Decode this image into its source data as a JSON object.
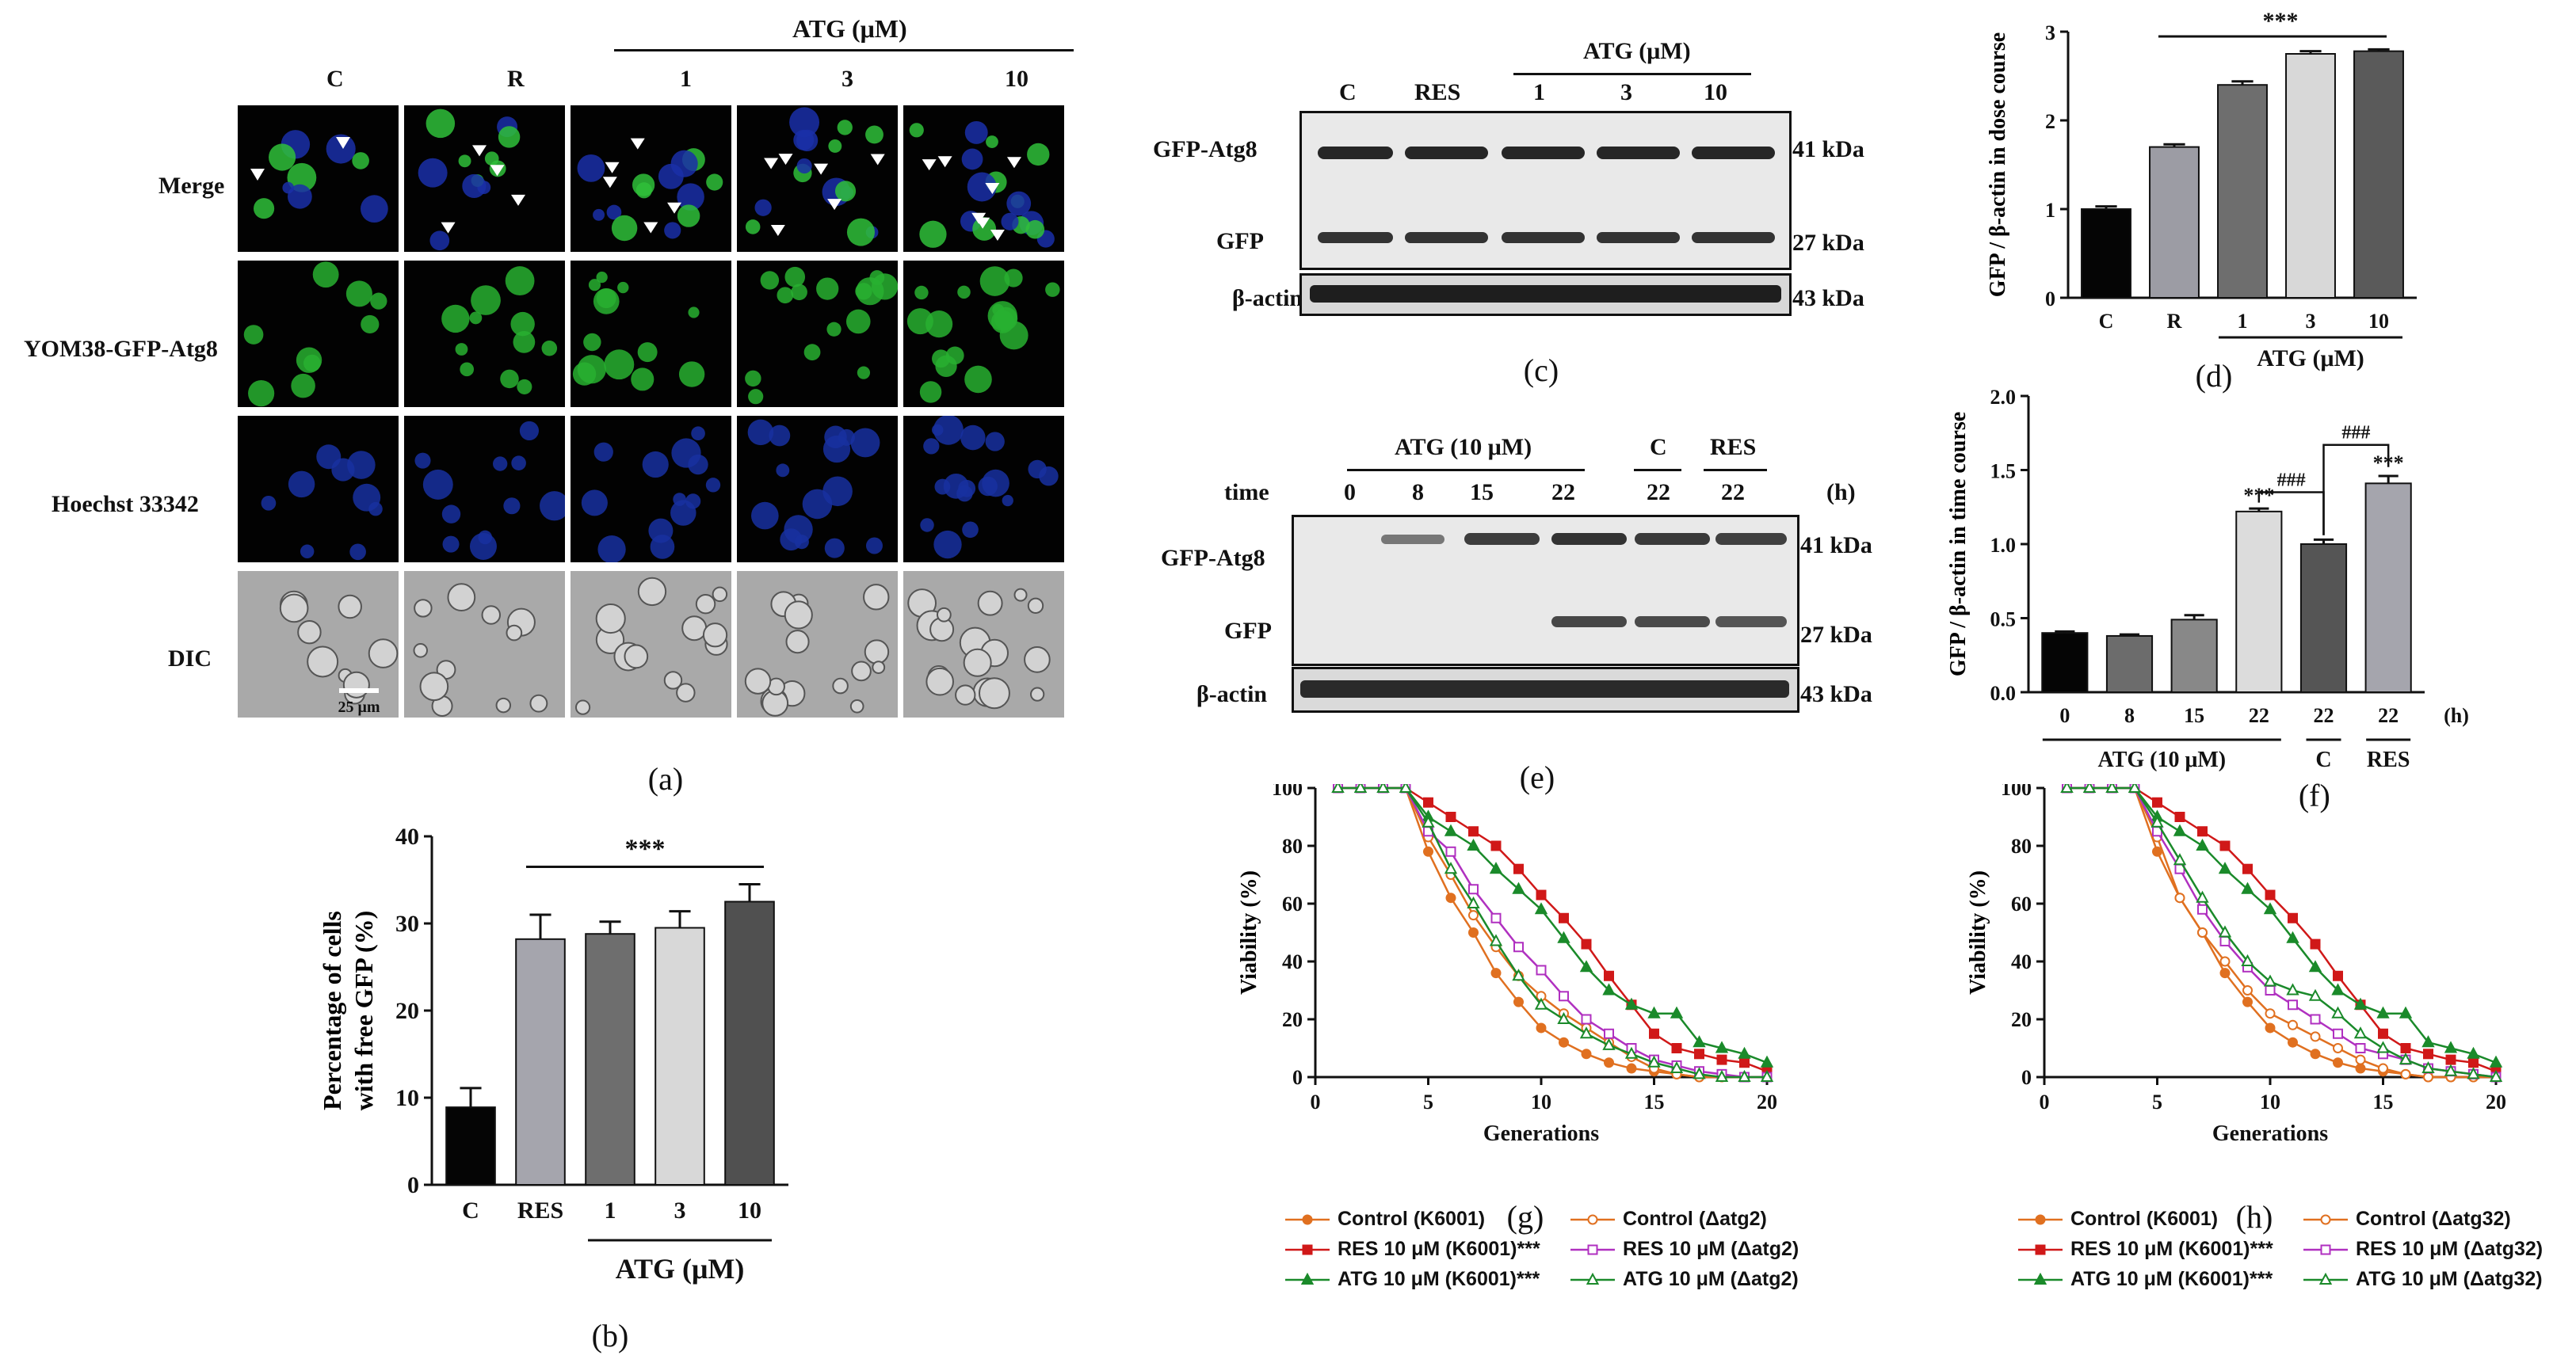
{
  "panel_a": {
    "caption": "(a)",
    "group_header": "ATG (μM)",
    "columns": [
      "C",
      "R",
      "1",
      "3",
      "10"
    ],
    "rows": [
      "Merge",
      "YOM38-GFP-Atg8",
      "Hoechst 33342",
      "DIC"
    ],
    "scale_bar": "25 μm"
  },
  "panel_c": {
    "caption": "(c)",
    "group_header": "ATG (μM)",
    "lanes": [
      "C",
      "RES",
      "1",
      "3",
      "10"
    ],
    "rows": [
      "GFP-Atg8",
      "GFP",
      "β-actin"
    ],
    "sizes": [
      "41 kDa",
      "27 kDa",
      "43 kDa"
    ]
  },
  "panel_e": {
    "caption": "(e)",
    "group_header_atg": "ATG (10 μM)",
    "group_header_c": "C",
    "group_header_res": "RES",
    "time_label": "time",
    "unit": "(h)",
    "lanes": [
      "0",
      "8",
      "15",
      "22",
      "22",
      "22"
    ],
    "rows": [
      "GFP-Atg8",
      "GFP",
      "β-actin"
    ],
    "sizes": [
      "41 kDa",
      "27 kDa",
      "43 kDa"
    ]
  },
  "chart_data": [
    {
      "id": "b",
      "type": "bar",
      "caption": "(b)",
      "categories": [
        "C",
        "RES",
        "1",
        "3",
        "10"
      ],
      "values": [
        8.9,
        28.2,
        28.8,
        29.5,
        32.5
      ],
      "errors": [
        2.2,
        2.8,
        1.4,
        1.9,
        2.0
      ],
      "colors": [
        "#050505",
        "#a5a5ad",
        "#6e6e6e",
        "#d8d8d8",
        "#505050"
      ],
      "ylabel": "Percentage of cells with free GFP (%)",
      "ylabel_lines": [
        "Percentage of cells",
        "with free GFP (%)"
      ],
      "ylim": [
        0,
        40
      ],
      "yticks": [
        "0",
        "10",
        "20",
        "30",
        "40"
      ],
      "significance": "***",
      "group_label": "ATG (μM)"
    },
    {
      "id": "d",
      "type": "bar",
      "caption": "(d)",
      "categories": [
        "C",
        "R",
        "1",
        "3",
        "10"
      ],
      "values": [
        1.0,
        1.7,
        2.4,
        2.75,
        2.78
      ],
      "errors": [
        0.03,
        0.03,
        0.04,
        0.03,
        0.02
      ],
      "colors": [
        "#050505",
        "#9c9ca4",
        "#6e6e6e",
        "#d8d8d8",
        "#5a5a5a"
      ],
      "ylabel": "GFP / β-actin in dose course",
      "ylim": [
        0,
        3
      ],
      "yticks": [
        "0",
        "1",
        "2",
        "3"
      ],
      "significance": "***",
      "group_label": "ATG (μM)"
    },
    {
      "id": "f",
      "type": "bar",
      "caption": "(f)",
      "categories": [
        "0",
        "8",
        "15",
        "22",
        "22",
        "22"
      ],
      "values": [
        0.4,
        0.38,
        0.49,
        1.22,
        1.0,
        1.41
      ],
      "errors": [
        0.01,
        0.01,
        0.03,
        0.02,
        0.03,
        0.05
      ],
      "colors": [
        "#050505",
        "#6c6c6c",
        "#888888",
        "#dcdcdc",
        "#555555",
        "#a5a5ad"
      ],
      "ylabel": "GFP / β-actin in time course",
      "ylim": [
        0,
        2.0
      ],
      "yticks": [
        "0.0",
        "0.5",
        "1.0",
        "1.5",
        "2.0"
      ],
      "unit": "(h)",
      "group_label": "ATG (10 μM)",
      "c_label": "C",
      "res_label": "RES",
      "bar_marks": [
        "",
        "",
        "",
        "***",
        "",
        "***"
      ],
      "bracket_mark": "###"
    },
    {
      "id": "g",
      "type": "line",
      "caption": "(g)",
      "xlabel": "Generations",
      "ylabel": "Viability (%)",
      "xlim": [
        0,
        20
      ],
      "ylim": [
        0,
        100
      ],
      "xticks": [
        "0",
        "5",
        "10",
        "15",
        "20"
      ],
      "yticks": [
        "0",
        "20",
        "40",
        "60",
        "80",
        "100"
      ],
      "series": [
        {
          "name": "Control (K6001)",
          "color": "#e07020",
          "marker": "circle-filled",
          "x": [
            1,
            2,
            3,
            4,
            5,
            6,
            7,
            8,
            9,
            10,
            11,
            12,
            13,
            14,
            15,
            16,
            17,
            18,
            19,
            20
          ],
          "y": [
            100,
            100,
            100,
            100,
            78,
            62,
            50,
            36,
            26,
            17,
            12,
            8,
            5,
            3,
            2,
            1,
            0,
            0,
            0,
            0
          ]
        },
        {
          "name": "RES 10 μM (K6001)***",
          "color": "#d01818",
          "marker": "square-filled",
          "x": [
            1,
            2,
            3,
            4,
            5,
            6,
            7,
            8,
            9,
            10,
            11,
            12,
            13,
            14,
            15,
            16,
            17,
            18,
            19,
            20
          ],
          "y": [
            100,
            100,
            100,
            100,
            95,
            90,
            85,
            80,
            72,
            63,
            55,
            46,
            35,
            25,
            15,
            10,
            8,
            6,
            5,
            2
          ]
        },
        {
          "name": "ATG 10 μM (K6001)***",
          "color": "#1a8a2a",
          "marker": "triangle-filled",
          "x": [
            1,
            2,
            3,
            4,
            5,
            6,
            7,
            8,
            9,
            10,
            11,
            12,
            13,
            14,
            15,
            16,
            17,
            18,
            19,
            20
          ],
          "y": [
            100,
            100,
            100,
            100,
            90,
            85,
            80,
            72,
            65,
            58,
            48,
            38,
            30,
            25,
            22,
            22,
            12,
            10,
            8,
            5
          ]
        },
        {
          "name": "Control (Δatg2)",
          "color": "#e07020",
          "marker": "circle-open",
          "x": [
            1,
            2,
            3,
            4,
            5,
            6,
            7,
            8,
            9,
            10,
            11,
            12,
            13,
            14,
            15,
            16,
            17,
            18,
            19,
            20
          ],
          "y": [
            100,
            100,
            100,
            100,
            83,
            70,
            56,
            45,
            35,
            28,
            22,
            17,
            12,
            7,
            3,
            1,
            0,
            0,
            0,
            0
          ]
        },
        {
          "name": "RES 10 μM (Δatg2)",
          "color": "#b030c0",
          "marker": "square-open",
          "x": [
            1,
            2,
            3,
            4,
            5,
            6,
            7,
            8,
            9,
            10,
            11,
            12,
            13,
            14,
            15,
            16,
            17,
            18,
            19,
            20
          ],
          "y": [
            100,
            100,
            100,
            100,
            85,
            78,
            65,
            55,
            45,
            37,
            28,
            20,
            15,
            10,
            6,
            4,
            2,
            1,
            0,
            0
          ]
        },
        {
          "name": "ATG 10 μM (Δatg2)",
          "color": "#1a8a2a",
          "marker": "triangle-open",
          "x": [
            1,
            2,
            3,
            4,
            5,
            6,
            7,
            8,
            9,
            10,
            11,
            12,
            13,
            14,
            15,
            16,
            17,
            18,
            19,
            20
          ],
          "y": [
            100,
            100,
            100,
            100,
            88,
            72,
            60,
            47,
            35,
            25,
            20,
            15,
            11,
            8,
            5,
            3,
            1,
            0,
            0,
            0
          ]
        }
      ]
    },
    {
      "id": "h",
      "type": "line",
      "caption": "(h)",
      "xlabel": "Generations",
      "ylabel": "Viability (%)",
      "xlim": [
        0,
        20
      ],
      "ylim": [
        0,
        100
      ],
      "xticks": [
        "0",
        "5",
        "10",
        "15",
        "20"
      ],
      "yticks": [
        "0",
        "20",
        "40",
        "60",
        "80",
        "100"
      ],
      "series": [
        {
          "name": "Control (K6001)",
          "color": "#e07020",
          "marker": "circle-filled",
          "x": [
            1,
            2,
            3,
            4,
            5,
            6,
            7,
            8,
            9,
            10,
            11,
            12,
            13,
            14,
            15,
            16,
            17,
            18,
            19,
            20
          ],
          "y": [
            100,
            100,
            100,
            100,
            78,
            62,
            50,
            36,
            26,
            17,
            12,
            8,
            5,
            3,
            2,
            1,
            0,
            0,
            0,
            0
          ]
        },
        {
          "name": "RES 10 μM (K6001)***",
          "color": "#d01818",
          "marker": "square-filled",
          "x": [
            1,
            2,
            3,
            4,
            5,
            6,
            7,
            8,
            9,
            10,
            11,
            12,
            13,
            14,
            15,
            16,
            17,
            18,
            19,
            20
          ],
          "y": [
            100,
            100,
            100,
            100,
            95,
            90,
            85,
            80,
            72,
            63,
            55,
            46,
            35,
            25,
            15,
            10,
            8,
            6,
            5,
            2
          ]
        },
        {
          "name": "ATG 10 μM (K6001)***",
          "color": "#1a8a2a",
          "marker": "triangle-filled",
          "x": [
            1,
            2,
            3,
            4,
            5,
            6,
            7,
            8,
            9,
            10,
            11,
            12,
            13,
            14,
            15,
            16,
            17,
            18,
            19,
            20
          ],
          "y": [
            100,
            100,
            100,
            100,
            90,
            85,
            80,
            72,
            65,
            58,
            48,
            38,
            30,
            25,
            22,
            22,
            12,
            10,
            8,
            5
          ]
        },
        {
          "name": "Control (Δatg32)",
          "color": "#e07020",
          "marker": "circle-open",
          "x": [
            1,
            2,
            3,
            4,
            5,
            6,
            7,
            8,
            9,
            10,
            11,
            12,
            13,
            14,
            15,
            16,
            17,
            18,
            19,
            20
          ],
          "y": [
            100,
            100,
            100,
            100,
            83,
            62,
            50,
            40,
            30,
            22,
            18,
            14,
            10,
            6,
            3,
            1,
            0,
            0,
            0,
            0
          ]
        },
        {
          "name": "RES 10 μM (Δatg32)",
          "color": "#b030c0",
          "marker": "square-open",
          "x": [
            1,
            2,
            3,
            4,
            5,
            6,
            7,
            8,
            9,
            10,
            11,
            12,
            13,
            14,
            15,
            16,
            17,
            18,
            19,
            20
          ],
          "y": [
            100,
            100,
            100,
            100,
            85,
            72,
            58,
            47,
            38,
            30,
            25,
            20,
            15,
            10,
            8,
            6,
            3,
            2,
            1,
            0
          ]
        },
        {
          "name": "ATG 10 μM (Δatg32)",
          "color": "#1a8a2a",
          "marker": "triangle-open",
          "x": [
            1,
            2,
            3,
            4,
            5,
            6,
            7,
            8,
            9,
            10,
            11,
            12,
            13,
            14,
            15,
            16,
            17,
            18,
            19,
            20
          ],
          "y": [
            100,
            100,
            100,
            100,
            88,
            75,
            62,
            50,
            40,
            33,
            30,
            28,
            22,
            15,
            10,
            6,
            3,
            2,
            1,
            0
          ]
        }
      ]
    }
  ]
}
